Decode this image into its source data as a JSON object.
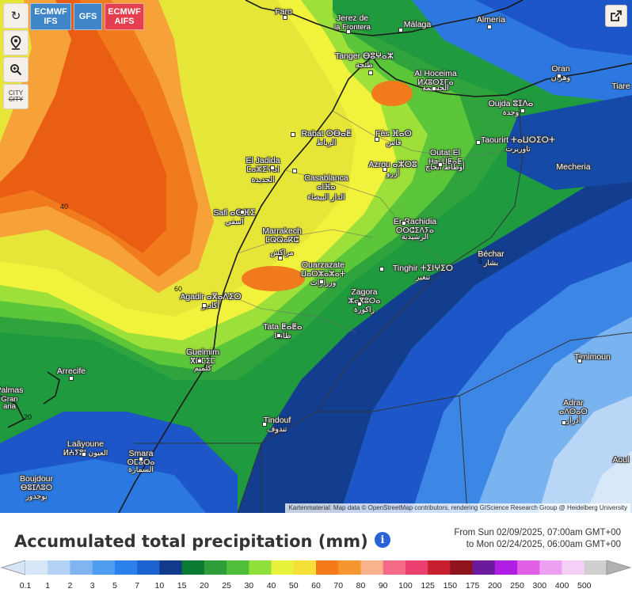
{
  "toolbar": {
    "refresh_icon": "refresh-icon",
    "location_icon": "map-pin-icon",
    "zoom_icon": "zoom-in-icon",
    "city_label": "CITY",
    "city_label_struck": "CITY"
  },
  "models": {
    "ifs_line1": "ECMWF",
    "ifs_line2": "IFS",
    "gfs": "GFS",
    "aifs_line1": "ECMWF",
    "aifs_line2": "AIFS"
  },
  "share_icon": "share-icon",
  "cities": [
    {
      "name": "Faro",
      "sub": ""
    },
    {
      "name": "Jerez de",
      "sub": "la Frontera"
    },
    {
      "name": "Málaga",
      "sub": ""
    },
    {
      "name": "Almería",
      "sub": ""
    },
    {
      "name": "Tanger ⴱⵓⵖⴰⵣ",
      "sub": "طنجة"
    },
    {
      "name": "Oran",
      "sub": "وهران"
    },
    {
      "name": "Al Hoceima",
      "sub": "ⵍⵃⵓⵙⵉⵎⴰ"
    },
    {
      "name": "",
      "sub": "الحسيمة"
    },
    {
      "name": "Tiare",
      "sub": ""
    },
    {
      "name": "Oujda ⵓⵊⴷⴰ",
      "sub": "وجدة"
    },
    {
      "name": "Rabat ⵔⴱⴰⵟ",
      "sub": "الرباط"
    },
    {
      "name": "Fès ⴼⴰⵙ",
      "sub": "فاس"
    },
    {
      "name": "Taourirt ⵜⴰⵡⵔⵉⵔⵜ",
      "sub": "تاوريرت"
    },
    {
      "name": "Outat El",
      "sub": "Haj ⵡⵟⴰⵟ"
    },
    {
      "name": "",
      "sub": "أوطاط الحاج"
    },
    {
      "name": "El Jadida",
      "sub": "ⵎⴰⵣⵉⵖⴰⵏ"
    },
    {
      "name": "",
      "sub": "الجديدة"
    },
    {
      "name": "Azrou ⴰⵣⵔⵓ",
      "sub": "أزرو"
    },
    {
      "name": "Casablanca",
      "sub": "ⴰⵏⴼⴰ"
    },
    {
      "name": "",
      "sub": "الدار البيضاء"
    },
    {
      "name": "Mecheria",
      "sub": ""
    },
    {
      "name": "Safi ⴰⵙⴼⵉ",
      "sub": "آسفي"
    },
    {
      "name": "Er Rachidia",
      "sub": "ⵔⵔⵛⵉⴷⵢⴰ"
    },
    {
      "name": "",
      "sub": "الرشيدية"
    },
    {
      "name": "Marrakech",
      "sub": "ⵎⵕⵕⴰⴽⵛ"
    },
    {
      "name": "",
      "sub": "مراكش"
    },
    {
      "name": "Béchar",
      "sub": "بشار"
    },
    {
      "name": "Ouarzazate",
      "sub": "ⵡⴰⵔⵣⴰⵣⴰⵜ"
    },
    {
      "name": "",
      "sub": "ورزازات"
    },
    {
      "name": "Tinghir ⵜⵉⵏⵖⵉⵔ",
      "sub": "تنغير"
    },
    {
      "name": "Agadir ⴰⴳⴰⴷⵉⵔ",
      "sub": "أكادير"
    },
    {
      "name": "Zagora",
      "sub": "ⵣⴰⴳⵓⵔⴰ"
    },
    {
      "name": "",
      "sub": "زاكورة"
    },
    {
      "name": "Tata ⵟⴰⵟⴰ",
      "sub": "طاطا"
    },
    {
      "name": "Guelmim",
      "sub": "ⴳⵍⵎⵉⵎ"
    },
    {
      "name": "",
      "sub": "كلميم"
    },
    {
      "name": "Timimoun",
      "sub": ""
    },
    {
      "name": "Arrecife",
      "sub": ""
    },
    {
      "name": "Palmas",
      "sub": "Gran"
    },
    {
      "name": "",
      "sub": "aria"
    },
    {
      "name": "Tindouf",
      "sub": "تندوف"
    },
    {
      "name": "Adrar",
      "sub": "ⴰⴷⵔⴰⵔ"
    },
    {
      "name": "",
      "sub": "أدرار"
    },
    {
      "name": "Laâyoune",
      "sub": "ⵍⵄⵢⵓⵏ العيون"
    },
    {
      "name": "Smara",
      "sub": "ⵙⵎⴰⵔⴰ"
    },
    {
      "name": "",
      "sub": "السمارة"
    },
    {
      "name": "Boujdour",
      "sub": "ⴱⵓⵊⴷⵓⵔ"
    },
    {
      "name": "",
      "sub": "بوجدور"
    },
    {
      "name": "Aoul",
      "sub": ""
    }
  ],
  "contour_labels": [
    "40",
    "60",
    "20",
    "5"
  ],
  "attribution": "Kartenmaterial: Map data © OpenStreetMap contributors, rendering GIScience Research Group @ Heidelberg University",
  "legend": {
    "title": "Accumulated total precipitation (mm)",
    "info_icon": "info-icon",
    "time_from": "From Sun 02/09/2025, 07:00am GMT+00",
    "time_to": "to Mon 02/24/2025, 06:00am GMT+00",
    "ticks": [
      "0.1",
      "1",
      "2",
      "3",
      "5",
      "7",
      "10",
      "15",
      "20",
      "25",
      "30",
      "40",
      "50",
      "60",
      "70",
      "80",
      "90",
      "100",
      "125",
      "150",
      "175",
      "200",
      "250",
      "300",
      "400",
      "500"
    ],
    "colors": [
      "#d7e6f7",
      "#b3d3f6",
      "#7fb6f2",
      "#4f9df0",
      "#2c80ec",
      "#1c62d0",
      "#123a8c",
      "#0b7a33",
      "#2e9e3a",
      "#4fbf3a",
      "#8fe03a",
      "#e9f23a",
      "#f5e03a",
      "#f57b1a",
      "#f5962f",
      "#f8b38a",
      "#f46b8a",
      "#ea3f6f",
      "#c81e2e",
      "#8f141e",
      "#6a1a9a",
      "#b01ee6",
      "#e060e8",
      "#eba0f2",
      "#f4d0f7",
      "#cfcfcf"
    ]
  }
}
